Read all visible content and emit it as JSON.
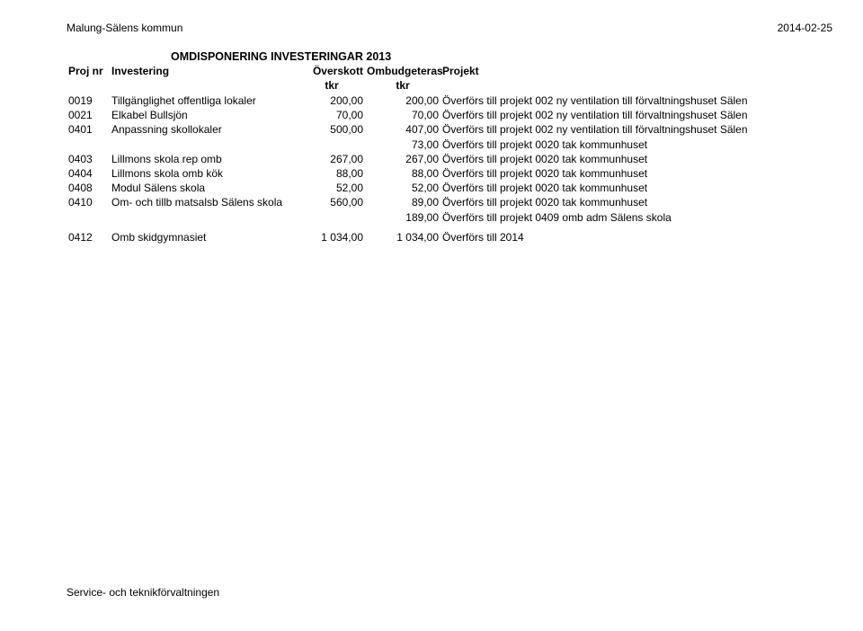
{
  "header": {
    "org": "Malung-Sälens kommun",
    "date": "2014-02-25"
  },
  "title": "OMDISPONERING INVESTERINGAR 2013",
  "columns": {
    "proj": "Proj nr",
    "inv": "Investering",
    "ov": "Överskott",
    "omb": "Ombudgeteras",
    "prj": "Projekt",
    "unit": "tkr"
  },
  "rows": [
    {
      "proj": "0019",
      "inv": "Tillgänglighet offentliga lokaler",
      "ov": "200,00",
      "omb": "200,00",
      "prj": "Överförs till projekt 002 ny ventilation till förvaltningshuset Sälen"
    },
    {
      "proj": "0021",
      "inv": "Elkabel Bullsjön",
      "ov": "70,00",
      "omb": "70,00",
      "prj": "Överförs till projekt 002 ny ventilation till förvaltningshuset Sälen"
    },
    {
      "proj": "0401",
      "inv": "Anpassning skollokaler",
      "ov": "500,00",
      "omb": "407,00",
      "prj": "Överförs till projekt 002 ny ventilation till förvaltningshuset Sälen"
    },
    {
      "proj": "",
      "inv": "",
      "ov": "",
      "omb": "73,00",
      "prj": "Överförs till projekt 0020 tak kommunhuset"
    },
    {
      "proj": "0403",
      "inv": "Lillmons skola rep omb",
      "ov": "267,00",
      "omb": "267,00",
      "prj": "Överförs till projekt 0020 tak kommunhuset"
    },
    {
      "proj": "0404",
      "inv": "Lillmons skola omb kök",
      "ov": "88,00",
      "omb": "88,00",
      "prj": "Överförs till projekt 0020 tak kommunhuset"
    },
    {
      "proj": "0408",
      "inv": "Modul Sälens skola",
      "ov": "52,00",
      "omb": "52,00",
      "prj": "Överförs till projekt 0020 tak kommunhuset"
    },
    {
      "proj": "0410",
      "inv": "Om- och tillb matsalsb Sälens skola",
      "ov": "560,00",
      "omb": "89,00",
      "prj": "Överförs till projekt 0020 tak kommunhuset"
    },
    {
      "proj": "",
      "inv": "",
      "ov": "",
      "omb": "189,00",
      "prj": "Överförs till projekt 0409 omb adm Sälens skola"
    }
  ],
  "rows2": [
    {
      "proj": "0412",
      "inv": "Omb skidgymnasiet",
      "ov": "1 034,00",
      "omb": "1 034,00",
      "prj": "Överförs till 2014"
    }
  ],
  "footer": "Service- och teknikförvaltningen"
}
